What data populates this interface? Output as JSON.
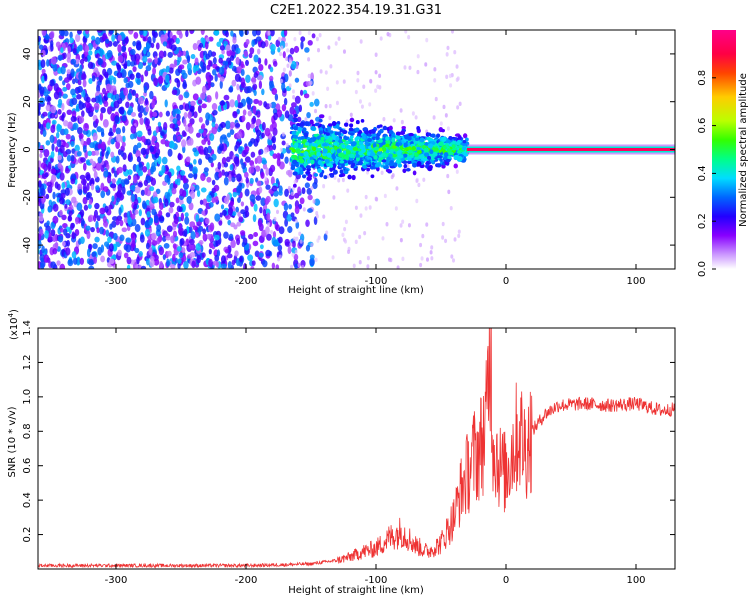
{
  "title": "C2E1.2022.354.19.31.G31",
  "chart_data": [
    {
      "type": "heatmap",
      "xlabel": "Height of straight line (km)",
      "ylabel": "Frequency (Hz)",
      "xlim": [
        -360,
        130
      ],
      "ylim": [
        -50,
        50
      ],
      "xticks": [
        -300,
        -200,
        -100,
        0,
        100
      ],
      "yticks": [
        -40,
        -20,
        0,
        20,
        40
      ],
      "colorbar": {
        "label": "Normalized spectral amplitude",
        "range": [
          0,
          1
        ],
        "ticks": [
          "0.0",
          "0.2",
          "0.4",
          "0.6",
          "0.8"
        ],
        "colormap": [
          "#ffffff",
          "#cc99ff",
          "#8800ff",
          "#2200ff",
          "#0066ff",
          "#00ddff",
          "#00ff88",
          "#33ff00",
          "#bbff00",
          "#ffcc00",
          "#ff4400",
          "#ff0044",
          "#ff0088"
        ]
      },
      "features": {
        "noise_region_x": [
          -360,
          -165
        ],
        "noise_amplitude": 0.35,
        "signal_cluster_x": [
          -165,
          -30
        ],
        "signal_cluster_freq_center": 0,
        "signal_cluster_amplitude": 0.45,
        "carrier_line_x": [
          -30,
          130
        ],
        "carrier_line_freq": 0,
        "carrier_line_amplitude": 0.95
      },
      "grid": false
    },
    {
      "type": "line",
      "xlabel": "Height of straight line (km)",
      "ylabel": "SNR (10 * v/v)",
      "yscale_label": "(x10",
      "yscale_exp": "4",
      "xlim": [
        -360,
        130
      ],
      "ylim": [
        0,
        1.4
      ],
      "xticks": [
        -300,
        -200,
        -100,
        0,
        100
      ],
      "yticks": [
        "0.2",
        "0.4",
        "0.6",
        "0.8",
        "1.0",
        "1.2",
        "1.4"
      ],
      "color": "#ee3333",
      "series": [
        {
          "x": [
            -360,
            -300,
            -250,
            -200,
            -170,
            -150,
            -130,
            -120,
            -110,
            -100,
            -90,
            -80,
            -70,
            -60,
            -50,
            -40,
            -35,
            -30,
            -25,
            -20,
            -15,
            -12,
            -10,
            -5,
            0,
            5,
            10,
            15,
            20,
            30,
            40,
            60,
            80,
            100,
            120,
            130
          ],
          "values": [
            0.02,
            0.02,
            0.02,
            0.02,
            0.025,
            0.03,
            0.05,
            0.07,
            0.1,
            0.12,
            0.18,
            0.22,
            0.14,
            0.1,
            0.15,
            0.3,
            0.45,
            0.55,
            0.65,
            0.7,
            0.85,
            1.4,
            0.75,
            0.6,
            0.55,
            0.7,
            0.8,
            0.7,
            0.8,
            0.9,
            0.95,
            0.96,
            0.95,
            0.96,
            0.92,
            0.93
          ]
        }
      ],
      "grid": false
    }
  ]
}
